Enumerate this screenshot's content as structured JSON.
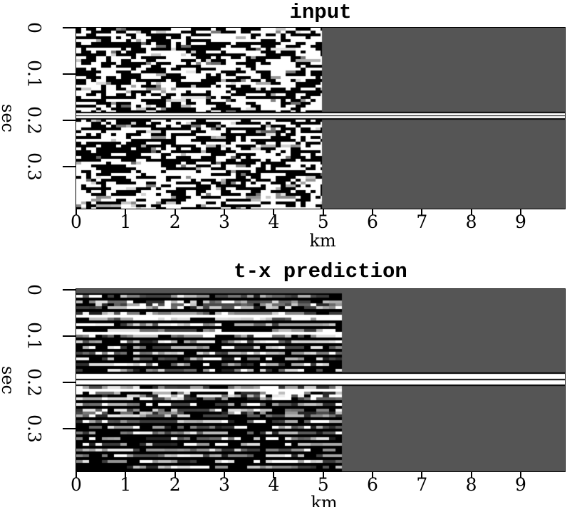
{
  "page": {
    "background": "#ffffff"
  },
  "chart_data": [
    {
      "type": "heatmap",
      "title": "input",
      "xlabel": "km",
      "ylabel": "sec",
      "x_ticks": [
        "0",
        "1",
        "2",
        "3",
        "4",
        "5",
        "6",
        "7",
        "8",
        "9"
      ],
      "y_ticks": [
        "0",
        "0.1",
        "0.2",
        "0.3"
      ],
      "x_range_km": [
        0,
        9.9
      ],
      "t_range_sec": [
        0,
        0.39
      ],
      "data_region_km": [
        0,
        5.0
      ],
      "no_data_region_km": [
        5.0,
        9.9
      ],
      "no_data_color": "#555555",
      "texture": "random binary black/white block noise, cells ~0.1 km x 0.006 s, with occasional gray cells",
      "gap_band_sec": [
        0.185,
        0.2
      ],
      "gap_style": "thin white horizontal band (two white lines bordered by black) spanning full width",
      "grid": false,
      "legend": false
    },
    {
      "type": "heatmap",
      "title": "t-x prediction",
      "xlabel": "km",
      "ylabel": "sec",
      "x_ticks": [
        "0",
        "1",
        "2",
        "3",
        "4",
        "5",
        "6",
        "7",
        "8",
        "9"
      ],
      "y_ticks": [
        "0",
        "0.1",
        "0.2",
        "0.3"
      ],
      "x_range_km": [
        0,
        9.9
      ],
      "t_range_sec": [
        0,
        0.39
      ],
      "data_region_km": [
        0,
        5.35
      ],
      "no_data_region_km": [
        5.35,
        9.9
      ],
      "no_data_color": "#555555",
      "texture": "horizontally striped grayscale noise: alternating noise rows, solid black rows and solid white rows, cells ~0.13 km wide",
      "gap_band_sec": [
        0.18,
        0.21
      ],
      "gap_style": "two thick white horizontal lines separated by black lines spanning full width",
      "top_row": "uniform gray row at t=0 spanning full width",
      "grid": false,
      "legend": false
    }
  ]
}
